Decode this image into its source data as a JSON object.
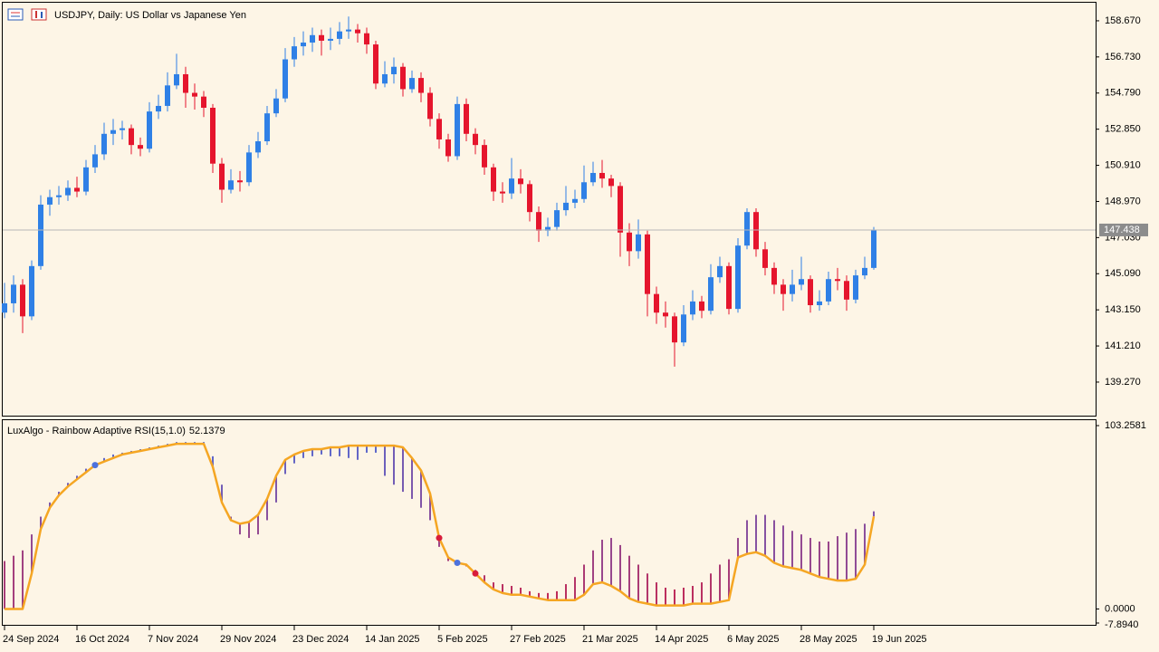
{
  "chart_data": [
    {
      "type": "candlestick",
      "title": "USDJPY, Daily:  US Dollar vs Japanese Yen",
      "categories": [
        "24 Sep 2024",
        null,
        null,
        null,
        null,
        null,
        null,
        null,
        "16 Oct 2024",
        null,
        null,
        null,
        null,
        null,
        null,
        null,
        "7 Nov 2024",
        null,
        null,
        null,
        null,
        null,
        null,
        null,
        "29 Nov 2024",
        null,
        null,
        null,
        null,
        null,
        null,
        null,
        "23 Dec 2024",
        null,
        null,
        null,
        null,
        null,
        null,
        null,
        "14 Jan 2025",
        null,
        null,
        null,
        null,
        null,
        null,
        null,
        "5 Feb 2025",
        null,
        null,
        null,
        null,
        null,
        null,
        null,
        "27 Feb 2025",
        null,
        null,
        null,
        null,
        null,
        null,
        null,
        "21 Mar 2025",
        null,
        null,
        null,
        null,
        null,
        null,
        null,
        "14 Apr 2025",
        null,
        null,
        null,
        null,
        null,
        null,
        null,
        "6 May 2025",
        null,
        null,
        null,
        null,
        null,
        null,
        null,
        "28 May 2025",
        null,
        null,
        null,
        null,
        null,
        null,
        null,
        "19 Jun 2025"
      ],
      "open": [
        143.0,
        143.5,
        144.5,
        142.8,
        145.5,
        148.8,
        149.2,
        149.3,
        149.7,
        149.5,
        150.8,
        151.5,
        152.6,
        152.8,
        152.9,
        152.0,
        151.8,
        153.8,
        154.1,
        155.2,
        155.8,
        154.8,
        154.6,
        154.0,
        151.0,
        149.6,
        150.1,
        150.0,
        151.6,
        152.2,
        153.7,
        154.5,
        156.6,
        157.3,
        157.5,
        157.9,
        157.6,
        157.7,
        158.1,
        158.2,
        158.0,
        157.4,
        155.3,
        155.8,
        156.2,
        155.0,
        155.6,
        154.8,
        153.4,
        152.3,
        151.4,
        154.2,
        152.6,
        152.0,
        150.8,
        149.5,
        149.4,
        150.2,
        149.9,
        148.4,
        147.4,
        147.6,
        148.5,
        148.9,
        149.1,
        150.0,
        150.5,
        150.2,
        149.8,
        147.3,
        146.3,
        147.2,
        144.0,
        143.0,
        142.8,
        141.4,
        142.9,
        143.6,
        143.1,
        144.9,
        145.5,
        143.2,
        146.6,
        148.4,
        146.4,
        145.4,
        144.5,
        144.0,
        144.5,
        144.8,
        143.4,
        143.6,
        144.8,
        144.7,
        143.7,
        145.0,
        145.4
      ],
      "high": [
        144.6,
        145.0,
        144.8,
        145.8,
        149.3,
        149.6,
        149.8,
        150.1,
        150.3,
        151.2,
        152.0,
        153.2,
        153.4,
        153.3,
        153.1,
        152.4,
        154.3,
        154.7,
        155.9,
        156.9,
        156.2,
        155.3,
        154.9,
        154.2,
        151.3,
        150.7,
        150.6,
        152.0,
        152.7,
        154.1,
        155.0,
        157.2,
        157.8,
        158.1,
        158.3,
        158.2,
        158.3,
        158.6,
        158.9,
        158.5,
        158.3,
        157.6,
        156.5,
        156.7,
        156.4,
        156.0,
        155.9,
        155.1,
        153.7,
        152.6,
        154.6,
        154.5,
        152.9,
        152.3,
        151.0,
        150.0,
        151.3,
        150.7,
        150.1,
        148.7,
        148.1,
        148.9,
        149.8,
        149.6,
        150.9,
        151.1,
        151.2,
        150.4,
        150.0,
        147.8,
        148.0,
        147.4,
        144.4,
        143.6,
        143.0,
        143.4,
        144.2,
        143.9,
        145.6,
        146.0,
        145.7,
        147.0,
        148.6,
        148.6,
        146.8,
        145.7,
        144.8,
        145.3,
        146.0,
        145.0,
        144.2,
        145.2,
        145.4,
        145.0,
        145.3,
        146.0,
        147.6
      ],
      "low": [
        142.7,
        143.0,
        141.9,
        142.6,
        145.3,
        148.2,
        148.8,
        149.0,
        149.2,
        149.3,
        150.5,
        151.2,
        152.0,
        152.3,
        151.5,
        151.4,
        151.6,
        153.4,
        153.8,
        155.0,
        154.0,
        153.9,
        153.5,
        150.5,
        148.9,
        149.4,
        149.5,
        149.8,
        151.3,
        152.0,
        153.5,
        154.3,
        156.2,
        156.8,
        157.0,
        156.8,
        157.1,
        157.4,
        157.7,
        157.5,
        156.9,
        155.0,
        155.1,
        155.3,
        154.6,
        154.8,
        154.3,
        153.0,
        151.8,
        151.1,
        151.2,
        152.2,
        151.5,
        150.4,
        149.0,
        148.9,
        149.1,
        149.4,
        147.9,
        146.8,
        147.1,
        147.4,
        148.2,
        148.6,
        148.9,
        149.8,
        149.7,
        149.2,
        146.0,
        145.5,
        145.9,
        142.8,
        142.4,
        142.2,
        140.1,
        141.2,
        142.6,
        142.7,
        142.9,
        144.6,
        142.9,
        143.0,
        146.4,
        146.0,
        145.0,
        144.0,
        143.1,
        143.6,
        144.2,
        143.0,
        143.1,
        143.4,
        144.2,
        143.1,
        143.5,
        144.8,
        145.3
      ],
      "close": [
        143.5,
        144.5,
        142.8,
        145.5,
        148.8,
        149.2,
        149.3,
        149.7,
        149.5,
        150.8,
        151.5,
        152.6,
        152.8,
        152.9,
        152.0,
        151.8,
        153.8,
        154.1,
        155.2,
        155.8,
        154.8,
        154.6,
        154.0,
        151.0,
        149.6,
        150.1,
        150.0,
        151.6,
        152.2,
        153.7,
        154.5,
        156.6,
        157.3,
        157.5,
        157.9,
        157.6,
        157.7,
        158.1,
        158.2,
        158.0,
        157.4,
        155.3,
        155.8,
        156.2,
        155.0,
        155.6,
        154.8,
        153.4,
        152.3,
        151.4,
        154.2,
        152.6,
        152.0,
        150.8,
        149.5,
        149.4,
        150.2,
        149.9,
        148.4,
        147.4,
        147.6,
        148.5,
        148.9,
        149.1,
        150.0,
        150.5,
        150.2,
        149.8,
        147.3,
        146.3,
        147.2,
        144.0,
        143.0,
        142.8,
        141.4,
        142.9,
        143.6,
        143.1,
        144.9,
        145.5,
        143.2,
        146.6,
        148.4,
        146.4,
        145.4,
        144.5,
        144.0,
        144.5,
        144.8,
        143.4,
        143.6,
        144.8,
        144.7,
        143.7,
        145.0,
        145.4,
        147.438
      ],
      "up_color": "#2f80e6",
      "down_color": "#e5152d",
      "price_line_color": "#b8b8b8",
      "ylim": [
        137.42,
        159.64
      ],
      "yticks": [
        {
          "value": 158.67,
          "label": "158.670"
        },
        {
          "value": 156.73,
          "label": "156.730"
        },
        {
          "value": 154.79,
          "label": "154.790"
        },
        {
          "value": 152.85,
          "label": "152.850"
        },
        {
          "value": 150.91,
          "label": "150.910"
        },
        {
          "value": 148.97,
          "label": "148.970"
        },
        {
          "value": 147.03,
          "label": "147.030"
        },
        {
          "value": 145.09,
          "label": "145.090"
        },
        {
          "value": 143.15,
          "label": "143.150"
        },
        {
          "value": 141.21,
          "label": "141.210"
        },
        {
          "value": 139.27,
          "label": "139.270"
        }
      ]
    },
    {
      "type": "rainbow",
      "title": "LuxAlgo - Rainbow Adaptive RSI(15,1.0)",
      "rsi": [
        0,
        0,
        0,
        20,
        45,
        57,
        64,
        69,
        73,
        77,
        81,
        83,
        85,
        87,
        88,
        89,
        90,
        91,
        92,
        93,
        93,
        93,
        93,
        80,
        60,
        50,
        48,
        49,
        53,
        62,
        75,
        84,
        87,
        89,
        90,
        90,
        91,
        91,
        92,
        92,
        92,
        92,
        92,
        92,
        91,
        85,
        78,
        65,
        40,
        29,
        26,
        25,
        20,
        15,
        11,
        9,
        8,
        8,
        7,
        6,
        5,
        5,
        5,
        5,
        8,
        14,
        15,
        13,
        10,
        6,
        4,
        3,
        2,
        2,
        2,
        2,
        3,
        3,
        3,
        4,
        5,
        29,
        31,
        32,
        30,
        26,
        24,
        23,
        22,
        20,
        18,
        17,
        16,
        16,
        17,
        25,
        52.1379
      ],
      "band": [
        27,
        30,
        33,
        42,
        52,
        60,
        66,
        71,
        75,
        79,
        82,
        85,
        87,
        88,
        89,
        90,
        91,
        92,
        93,
        94,
        94,
        94,
        94,
        86,
        70,
        52,
        42,
        40,
        42,
        50,
        60,
        76,
        82,
        85,
        86,
        87,
        86,
        86,
        85,
        84,
        88,
        88,
        75,
        70,
        66,
        62,
        57,
        50,
        35,
        27,
        26,
        24,
        22,
        19,
        15,
        14,
        13,
        12,
        10,
        9,
        9,
        10,
        14,
        18,
        25,
        33,
        39,
        40,
        36,
        30,
        25,
        20,
        15,
        12,
        11,
        12,
        13,
        15,
        20,
        25,
        28,
        40,
        50,
        53,
        53,
        50,
        47,
        44,
        42,
        40,
        38,
        38,
        41,
        43,
        45,
        48,
        55
      ],
      "color": "#f5a623",
      "bar_colors": [
        "#d81c3a",
        "#8c4f9c",
        "#4d72dd"
      ],
      "markers": [
        {
          "index": 10,
          "color": "#4d72dd"
        },
        {
          "index": 48,
          "color": "#d81c3a"
        },
        {
          "index": 50,
          "color": "#4d72dd"
        },
        {
          "index": 52,
          "color": "#d81c3a"
        }
      ],
      "ylim": [
        -7.894,
        103.2581
      ],
      "yticks": [
        103.2581,
        {
          "value": 0,
          "label": "0.0000"
        },
        {
          "value": -7.894,
          "label": "-7.8940"
        }
      ]
    }
  ]
}
